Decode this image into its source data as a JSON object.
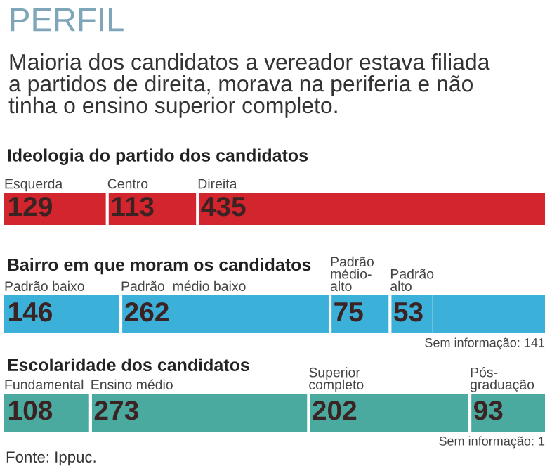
{
  "chart_data": [
    {
      "type": "other",
      "title": "PERFIL",
      "subtitle": "Maioria dos candidatos a vereador estava filiada\na partidos de direita, morava na periferia e não\ntinha o ensino superior completo."
    },
    {
      "type": "bar",
      "orientation": "horizontal",
      "stacked": true,
      "title": "Ideologia do partido dos candidatos",
      "categories": [
        null
      ],
      "xlim": [
        0,
        677
      ],
      "tick_labels": false,
      "series": [
        {
          "name": "Esquerda",
          "color": "#d3252d",
          "values": [
            129
          ],
          "value_labels": [
            "129"
          ]
        },
        {
          "name": "Centro",
          "color": "#d3252d",
          "values": [
            113
          ],
          "value_labels": [
            "113"
          ]
        },
        {
          "name": "Direita",
          "color": "#d3252d",
          "values": [
            435
          ],
          "value_labels": [
            "435"
          ]
        }
      ]
    },
    {
      "type": "bar",
      "orientation": "horizontal",
      "stacked": true,
      "title": "Bairro em que moram os candidatos",
      "categories": [
        null
      ],
      "xlim": [
        0,
        677
      ],
      "tick_labels": false,
      "annotations": [
        "Sem informação: 141"
      ],
      "series": [
        {
          "name": "Padrão baixo",
          "color": "#3bb0d9",
          "values": [
            146
          ],
          "value_labels": [
            "146"
          ]
        },
        {
          "name": "Padrão  médio baixo",
          "color": "#3bb0d9",
          "values": [
            262
          ],
          "value_labels": [
            "262"
          ]
        },
        {
          "name": "Padrão\nmédio-\nalto",
          "color": "#3bb0d9",
          "values": [
            75
          ],
          "value_labels": [
            "75"
          ]
        },
        {
          "name": "Padrão\nalto",
          "color": "#3bb0d9",
          "values": [
            53
          ],
          "value_labels": [
            "53"
          ]
        },
        {
          "color": "#3bb0d9",
          "values": [
            141
          ],
          "value_labels": [
            null
          ]
        }
      ]
    },
    {
      "type": "bar",
      "orientation": "horizontal",
      "stacked": true,
      "title": "Escolaridade dos candidatos",
      "categories": [
        null
      ],
      "xlim": [
        0,
        677
      ],
      "tick_labels": false,
      "annotations": [
        "Sem informação: 1",
        "Fonte: Ippuc."
      ],
      "series": [
        {
          "name": "Fundamental",
          "color": "#4aaa9f",
          "values": [
            108
          ],
          "value_labels": [
            "108"
          ]
        },
        {
          "name": "Ensino médio",
          "color": "#4aaa9f",
          "values": [
            273
          ],
          "value_labels": [
            "273"
          ]
        },
        {
          "name": "Superior\ncompleto",
          "color": "#4aaa9f",
          "values": [
            202
          ],
          "value_labels": [
            "202"
          ]
        },
        {
          "name": "Pós-\ngraduação",
          "color": "#4aaa9f",
          "values": [
            93
          ],
          "value_labels": [
            "93"
          ]
        },
        {
          "color": "#4aaa9f",
          "values": [
            1
          ],
          "value_labels": [
            null
          ]
        }
      ]
    }
  ]
}
